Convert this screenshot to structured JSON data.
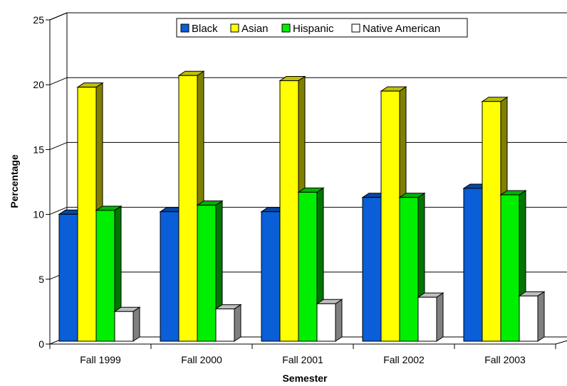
{
  "chart_data": {
    "type": "bar",
    "xlabel": "Semester",
    "ylabel": "Percentage",
    "ylim": [
      0,
      25
    ],
    "yticks": [
      0,
      5,
      10,
      15,
      20,
      25
    ],
    "categories": [
      "Fall 1999",
      "Fall 2000",
      "Fall 2001",
      "Fall 2002",
      "Fall 2003"
    ],
    "series": [
      {
        "name": "Black",
        "color": "#0a5ed7",
        "values": [
          9.9,
          10.1,
          10.1,
          11.2,
          11.9
        ]
      },
      {
        "name": "Asian",
        "color": "#ffff00",
        "values": [
          19.7,
          20.6,
          20.2,
          19.4,
          18.6
        ]
      },
      {
        "name": "Hispanic",
        "color": "#00ee00",
        "values": [
          10.2,
          10.6,
          11.6,
          11.2,
          11.4
        ]
      },
      {
        "name": "Native American",
        "color": "#ffffff",
        "values": [
          2.4,
          2.6,
          3.0,
          3.5,
          3.6
        ]
      }
    ],
    "legend_position": "top-center",
    "grid": true
  }
}
